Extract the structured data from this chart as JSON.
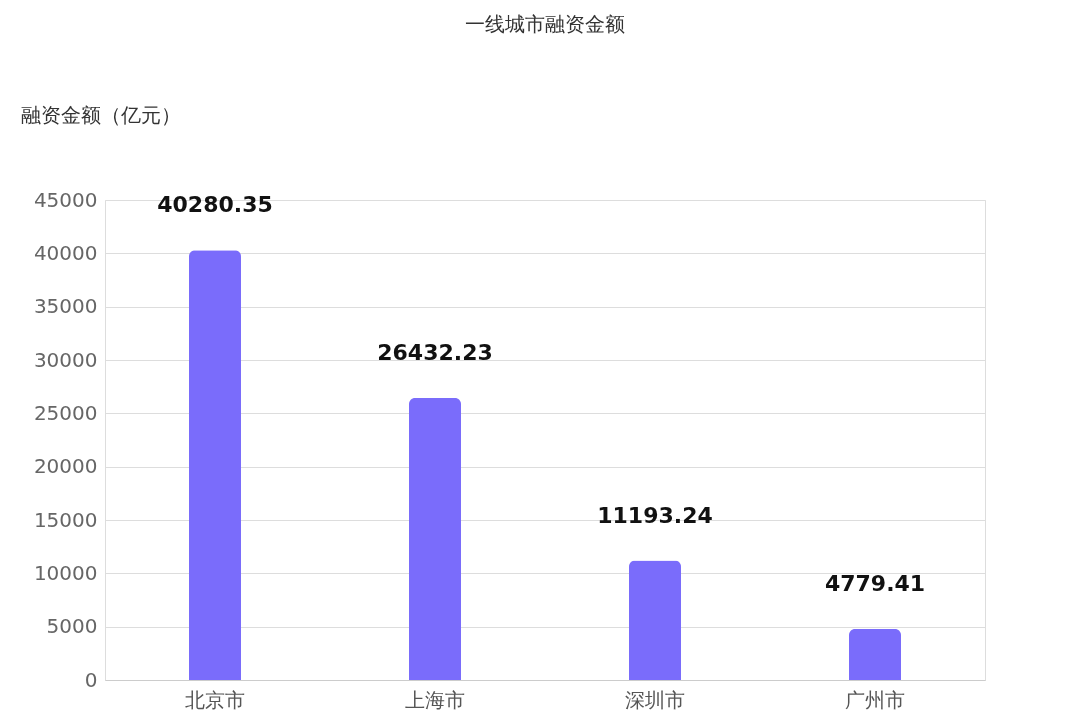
{
  "chart_data": {
    "type": "bar",
    "title": "一线城市融资金额",
    "ylabel": "融资金额（亿元）",
    "categories": [
      "北京市",
      "上海市",
      "深圳市",
      "广州市"
    ],
    "values": [
      40280.35,
      26432.23,
      11193.24,
      4779.41
    ],
    "color": "#7a6cfb",
    "ylim": [
      0,
      45000
    ],
    "yticks": [
      0,
      5000,
      10000,
      15000,
      20000,
      25000,
      30000,
      35000,
      40000,
      45000
    ],
    "grid": "y",
    "data_labels": true
  }
}
